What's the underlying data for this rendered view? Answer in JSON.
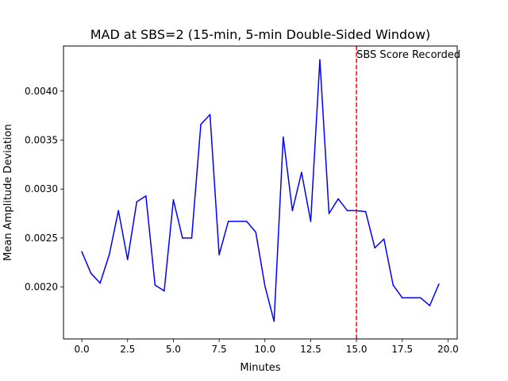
{
  "chart_data": {
    "type": "line",
    "title": "MAD at SBS=2 (15-min, 5-min Double-Sided Window)",
    "xlabel": "Minutes",
    "ylabel": "Mean Amplitude Deviation",
    "xlim": [
      -1.0,
      20.5
    ],
    "ylim": [
      0.00147,
      0.00446
    ],
    "xticks": [
      0.0,
      2.5,
      5.0,
      7.5,
      10.0,
      12.5,
      15.0,
      17.5,
      20.0
    ],
    "xtick_labels": [
      "0.0",
      "2.5",
      "5.0",
      "7.5",
      "10.0",
      "12.5",
      "15.0",
      "17.5",
      "20.0"
    ],
    "yticks": [
      0.002,
      0.0025,
      0.003,
      0.0035,
      0.004
    ],
    "ytick_labels": [
      "0.0020",
      "0.0025",
      "0.0030",
      "0.0035",
      "0.0040"
    ],
    "grid": false,
    "series": [
      {
        "color": "#0000ff",
        "x": [
          0.0,
          0.5,
          1.0,
          1.5,
          2.0,
          2.5,
          3.0,
          3.5,
          4.0,
          4.5,
          5.0,
          5.5,
          6.0,
          6.5,
          7.0,
          7.5,
          8.0,
          8.5,
          9.0,
          9.5,
          10.0,
          10.5,
          11.0,
          11.5,
          12.0,
          12.5,
          13.0,
          13.5,
          14.0,
          14.5,
          15.0,
          15.5,
          16.0,
          16.5,
          17.0,
          17.5,
          18.0,
          18.5,
          19.0,
          19.5
        ],
        "values": [
          0.00236,
          0.00214,
          0.00204,
          0.00233,
          0.00278,
          0.00228,
          0.00287,
          0.00293,
          0.00202,
          0.00196,
          0.00289,
          0.0025,
          0.0025,
          0.00366,
          0.00376,
          0.00233,
          0.00267,
          0.00267,
          0.00267,
          0.00256,
          0.00201,
          0.00165,
          0.00353,
          0.00278,
          0.00317,
          0.00267,
          0.00432,
          0.00275,
          0.0029,
          0.00278,
          0.00278,
          0.00277,
          0.0024,
          0.00249,
          0.00202,
          0.00189,
          0.00189,
          0.00189,
          0.00181,
          0.00203
        ]
      }
    ],
    "vline": {
      "x": 15.0,
      "color": "#ff0000",
      "style": "dashed"
    },
    "annotation": {
      "text": "SBS Score Recorded",
      "x": 15.0
    }
  }
}
